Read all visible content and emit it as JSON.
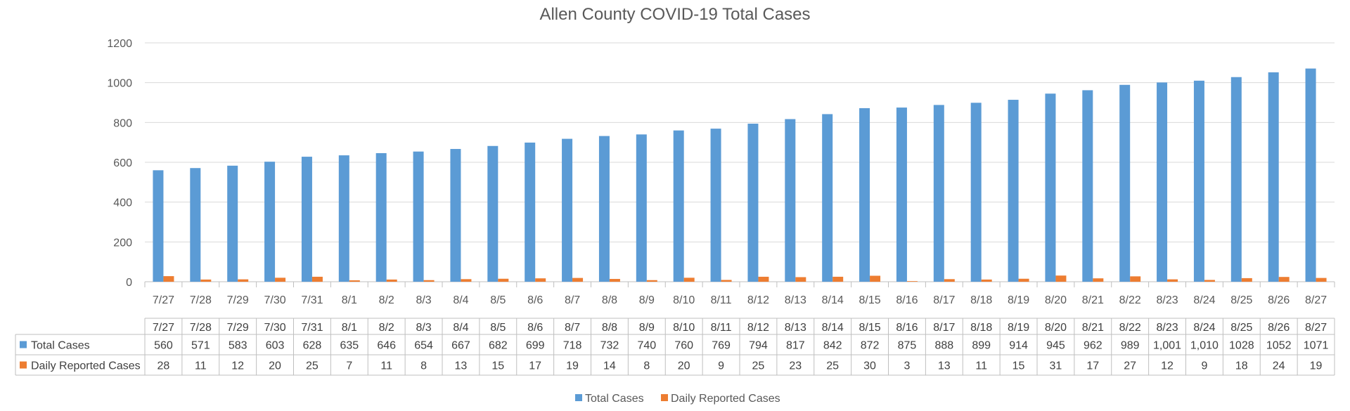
{
  "chart_data": {
    "type": "bar",
    "title": "Allen County COVID-19 Total Cases",
    "xlabel": "",
    "ylabel": "",
    "ylim": [
      0,
      1200
    ],
    "yticks": [
      0,
      200,
      400,
      600,
      800,
      1000,
      1200
    ],
    "grid": true,
    "legend_position": "bottom",
    "data_table": true,
    "categories": [
      "7/27",
      "7/28",
      "7/29",
      "7/30",
      "7/31",
      "8/1",
      "8/2",
      "8/3",
      "8/4",
      "8/5",
      "8/6",
      "8/7",
      "8/8",
      "8/9",
      "8/10",
      "8/11",
      "8/12",
      "8/13",
      "8/14",
      "8/15",
      "8/16",
      "8/17",
      "8/18",
      "8/19",
      "8/20",
      "8/21",
      "8/22",
      "8/23",
      "8/24",
      "8/25",
      "8/26",
      "8/27"
    ],
    "series": [
      {
        "name": "Total Cases",
        "color": "#5b9bd5",
        "values": [
          560,
          571,
          583,
          603,
          628,
          635,
          646,
          654,
          667,
          682,
          699,
          718,
          732,
          740,
          760,
          769,
          794,
          817,
          842,
          872,
          875,
          888,
          899,
          914,
          945,
          962,
          989,
          1001,
          1010,
          1028,
          1052,
          1071
        ],
        "table_labels": [
          "560",
          "571",
          "583",
          "603",
          "628",
          "635",
          "646",
          "654",
          "667",
          "682",
          "699",
          "718",
          "732",
          "740",
          "760",
          "769",
          "794",
          "817",
          "842",
          "872",
          "875",
          "888",
          "899",
          "914",
          "945",
          "962",
          "989",
          "1,001",
          "1,010",
          "1028",
          "1052",
          "1071"
        ]
      },
      {
        "name": "Daily Reported Cases",
        "color": "#ed7d31",
        "values": [
          28,
          11,
          12,
          20,
          25,
          7,
          11,
          8,
          13,
          15,
          17,
          19,
          14,
          8,
          20,
          9,
          25,
          23,
          25,
          30,
          3,
          13,
          11,
          15,
          31,
          17,
          27,
          12,
          9,
          18,
          24,
          19
        ],
        "table_labels": [
          "28",
          "11",
          "12",
          "20",
          "25",
          "7",
          "11",
          "8",
          "13",
          "15",
          "17",
          "19",
          "14",
          "8",
          "20",
          "9",
          "25",
          "23",
          "25",
          "30",
          "3",
          "13",
          "11",
          "15",
          "31",
          "17",
          "27",
          "12",
          "9",
          "18",
          "24",
          "19"
        ]
      }
    ]
  }
}
